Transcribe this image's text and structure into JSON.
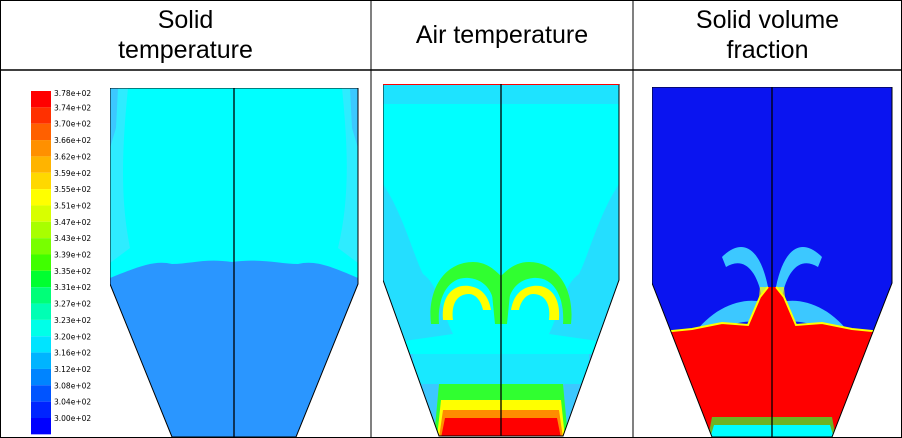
{
  "headers": [
    {
      "lines": [
        "Solid",
        "temperature"
      ]
    },
    {
      "lines": [
        "Air temperature"
      ]
    },
    {
      "lines": [
        "Solid volume",
        "fraction"
      ]
    }
  ],
  "legend": {
    "labels": [
      "3.78e+02",
      "3.74e+02",
      "3.70e+02",
      "3.66e+02",
      "3.62e+02",
      "3.59e+02",
      "3.55e+02",
      "3.51e+02",
      "3.47e+02",
      "3.43e+02",
      "3.39e+02",
      "3.35e+02",
      "3.31e+02",
      "3.27e+02",
      "3.23e+02",
      "3.20e+02",
      "3.16e+02",
      "3.12e+02",
      "3.08e+02",
      "3.04e+02",
      "3.00e+02"
    ],
    "colors": [
      "#ff0000",
      "#ff3000",
      "#ff6000",
      "#ff9000",
      "#ffb400",
      "#ffd800",
      "#ffff00",
      "#d8ff00",
      "#a8ff00",
      "#78ff00",
      "#40ff00",
      "#00ff30",
      "#00ff78",
      "#00ffb4",
      "#00ffe8",
      "#00e4ff",
      "#00b4ff",
      "#0084ff",
      "#0054ff",
      "#0024ff",
      "#0000ff"
    ]
  },
  "colors": {
    "cyan": "#00ffff",
    "light_blue": "#3cc8ff",
    "mid_blue": "#2a96ff",
    "blue": "#0000ff",
    "deep_blue": "#0a14f0",
    "green": "#30ff30",
    "yellow": "#ffff00",
    "orange": "#ff8c00",
    "red": "#ff0000"
  }
}
